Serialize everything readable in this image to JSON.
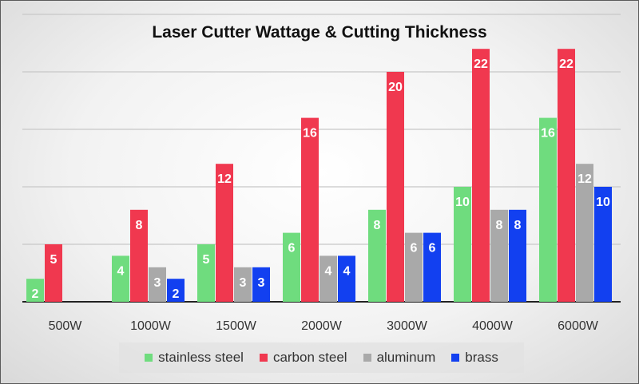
{
  "chart_data": {
    "type": "bar",
    "title": "Laser Cutter Wattage & Cutting Thickness",
    "categories": [
      "500W",
      "1000W",
      "1500W",
      "2000W",
      "3000W",
      "4000W",
      "6000W"
    ],
    "series": [
      {
        "name": "stainless steel",
        "color": "#6fdc7e",
        "values": [
          2,
          4,
          5,
          6,
          8,
          10,
          16
        ]
      },
      {
        "name": "carbon steel",
        "color": "#f0384f",
        "values": [
          5,
          8,
          12,
          16,
          20,
          22,
          22
        ]
      },
      {
        "name": "aluminum",
        "color": "#a9a9a9",
        "values": [
          null,
          3,
          3,
          4,
          6,
          8,
          12
        ]
      },
      {
        "name": "brass",
        "color": "#1240f0",
        "values": [
          null,
          2,
          3,
          4,
          6,
          8,
          10
        ]
      }
    ],
    "ylim": [
      0,
      25
    ],
    "grid": true,
    "legend_position": "bottom"
  }
}
